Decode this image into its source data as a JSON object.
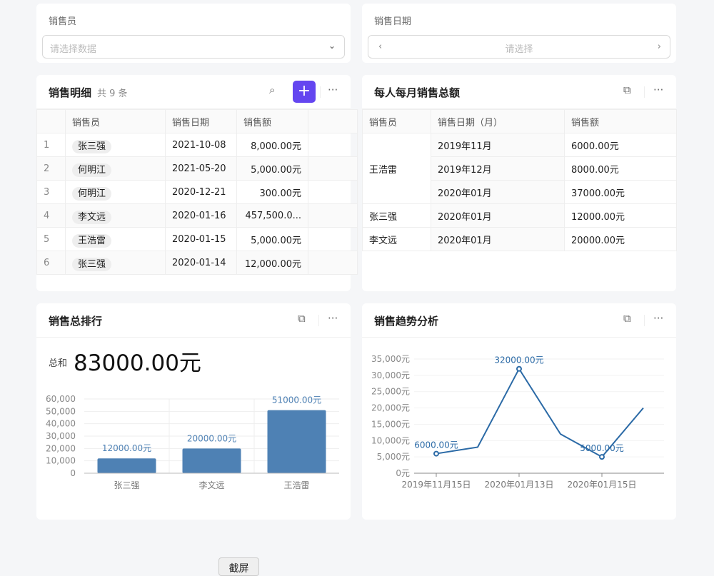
{
  "filters": {
    "salesperson": {
      "label": "销售员",
      "placeholder": "请选择数据"
    },
    "date": {
      "label": "销售日期",
      "placeholder": "请选择"
    }
  },
  "detail": {
    "title": "销售明细",
    "count": "共 9 条",
    "columns": [
      "销售员",
      "销售日期",
      "销售额"
    ],
    "rows": [
      [
        "1",
        "张三强",
        "2021-10-08",
        "8,000.00元"
      ],
      [
        "2",
        "何明江",
        "2021-05-20",
        "5,000.00元"
      ],
      [
        "3",
        "何明江",
        "2020-12-21",
        "300.00元"
      ],
      [
        "4",
        "李文远",
        "2020-01-16",
        "457,500.0..."
      ],
      [
        "5",
        "王浩雷",
        "2020-01-15",
        "5,000.00元"
      ],
      [
        "6",
        "张三强",
        "2020-01-14",
        "12,000.00元"
      ]
    ]
  },
  "monthly": {
    "title": "每人每月销售总额",
    "columns": [
      "销售员",
      "销售日期（月）",
      "销售额"
    ],
    "rows": [
      [
        "王浩雷",
        "2019年11月",
        "6000.00元"
      ],
      [
        "",
        "2019年12月",
        "8000.00元"
      ],
      [
        "",
        "2020年01月",
        "37000.00元"
      ],
      [
        "张三强",
        "2020年01月",
        "12000.00元"
      ],
      [
        "李文远",
        "2020年01月",
        "20000.00元"
      ]
    ]
  },
  "ranking": {
    "title": "销售总排行",
    "sum_label": "总和",
    "sum_value": "83000.00元"
  },
  "trend": {
    "title": "销售趋势分析"
  },
  "screenshot_button": "截屏",
  "chart_data": [
    {
      "type": "bar",
      "categories": [
        "张三强",
        "李文远",
        "王浩雷"
      ],
      "values": [
        12000,
        20000,
        51000
      ],
      "data_labels": [
        "12000.00元",
        "20000.00元",
        "51000.00元"
      ],
      "ylim": [
        0,
        60000
      ],
      "yticks": [
        "0",
        "10,000",
        "20,000",
        "30,000",
        "40,000",
        "50,000",
        "60,000"
      ],
      "grid": true,
      "color": "#4e81b4"
    },
    {
      "type": "line",
      "values": [
        6000,
        8000,
        32000,
        12000,
        5000,
        20000
      ],
      "x_tick_labels": [
        "2019年11月15日",
        "",
        "2020年01月13日",
        "",
        "2020年01月15日",
        ""
      ],
      "data_labels": [
        "6000.00元",
        "",
        "32000.00元",
        "",
        "5000.00元",
        ""
      ],
      "ylim": [
        0,
        35000
      ],
      "yticks": [
        "0元",
        "5,000元",
        "10,000元",
        "15,000元",
        "20,000元",
        "25,000元",
        "30,000元",
        "35,000元"
      ],
      "grid": true,
      "color": "#2b6aa6"
    }
  ]
}
